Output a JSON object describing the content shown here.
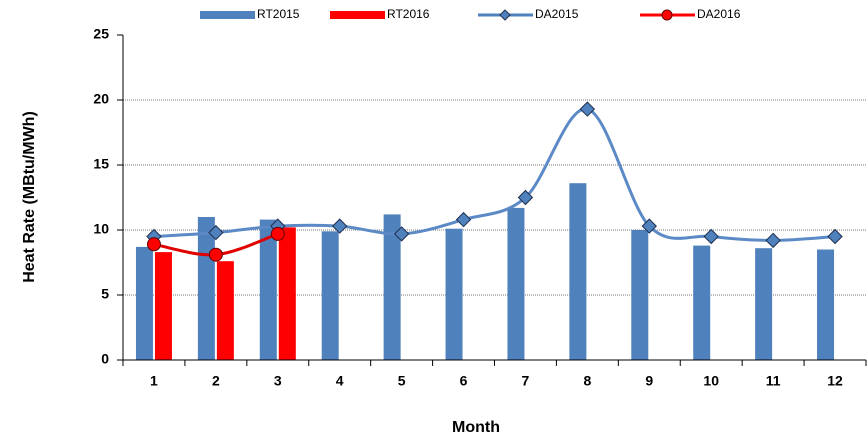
{
  "chart_data": {
    "type": "bar_line",
    "x_label": "Month",
    "y_label": "Heat Rate (MBtu/MWh)",
    "categories": [
      "1",
      "2",
      "3",
      "4",
      "5",
      "6",
      "7",
      "8",
      "9",
      "10",
      "11",
      "12"
    ],
    "series": [
      {
        "name": "RT2015",
        "type": "bar",
        "color": "#4f81bd",
        "values": [
          8.7,
          11.0,
          10.8,
          9.9,
          11.2,
          10.1,
          11.7,
          13.6,
          10.0,
          8.8,
          8.6,
          8.5
        ]
      },
      {
        "name": "RT2016",
        "type": "bar",
        "color": "#ff0000",
        "values": [
          8.3,
          7.6,
          10.2,
          null,
          null,
          null,
          null,
          null,
          null,
          null,
          null,
          null
        ]
      },
      {
        "name": "DA2015",
        "type": "line",
        "marker": "diamond",
        "color": "#4f81bd",
        "values": [
          9.5,
          9.8,
          10.3,
          10.3,
          9.7,
          10.8,
          12.5,
          19.3,
          10.3,
          9.5,
          9.2,
          9.5
        ]
      },
      {
        "name": "DA2016",
        "type": "line",
        "marker": "circle",
        "color": "#ff0000",
        "values": [
          8.9,
          8.1,
          9.7,
          null,
          null,
          null,
          null,
          null,
          null,
          null,
          null,
          null
        ]
      }
    ],
    "ylim": [
      0,
      25
    ],
    "yticks": [
      0,
      5,
      10,
      15,
      20,
      25
    ],
    "grid": true,
    "legend": "top"
  }
}
